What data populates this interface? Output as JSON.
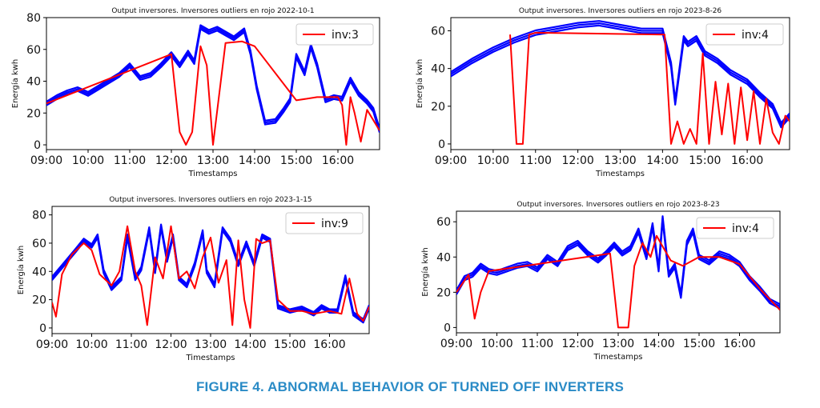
{
  "caption": "FIGURE 4. ABNORMAL BEHAVIOR OF TURNED OFF INVERTERS",
  "chart_data": [
    {
      "type": "line",
      "title": "Output inversores. Inversores outliers en rojo 2022-10-1",
      "xlabel": "Timestamps",
      "ylabel": "Energía kwh",
      "x_ticks": [
        "09:00",
        "10:00",
        "11:00",
        "12:00",
        "13:00",
        "14:00",
        "15:00",
        "16:00"
      ],
      "y_ticks": [
        0,
        20,
        40,
        60,
        80
      ],
      "xlim": [
        9.0,
        17.0
      ],
      "ylim": [
        -3,
        80
      ],
      "legend": {
        "label": "inv:3",
        "position": "top-right"
      },
      "colors": {
        "normal": "#0000ff",
        "outlier": "#ff0000"
      },
      "normal_series": {
        "x": [
          9.0,
          9.25,
          9.5,
          9.75,
          10.0,
          10.25,
          10.5,
          10.75,
          11.0,
          11.25,
          11.5,
          11.75,
          12.0,
          12.2,
          12.4,
          12.55,
          12.7,
          12.9,
          13.1,
          13.3,
          13.5,
          13.75,
          13.9,
          14.05,
          14.25,
          14.5,
          14.7,
          14.85,
          15.0,
          15.2,
          15.35,
          15.5,
          15.7,
          15.9,
          16.1,
          16.3,
          16.5,
          16.7,
          16.85,
          17.0
        ],
        "y": [
          26,
          30,
          33,
          35,
          32,
          36,
          40,
          44,
          50,
          42,
          44,
          50,
          57,
          50,
          58,
          52,
          74,
          71,
          73,
          70,
          67,
          72,
          58,
          36,
          14,
          15,
          22,
          28,
          56,
          45,
          62,
          50,
          28,
          30,
          29,
          41,
          32,
          27,
          22,
          9
        ]
      },
      "outlier_series": {
        "x": [
          9.0,
          12.0,
          12.2,
          12.35,
          12.5,
          12.7,
          12.85,
          13.0,
          13.3,
          13.7,
          14.0,
          15.0,
          15.5,
          16.0,
          16.1,
          16.2,
          16.3,
          16.4,
          16.55,
          16.7,
          17.0
        ],
        "y": [
          26,
          57,
          8,
          0,
          8,
          62,
          50,
          0,
          64,
          65,
          62,
          28,
          30,
          30,
          25,
          0,
          30,
          20,
          2,
          22,
          9
        ]
      }
    },
    {
      "type": "line",
      "title": "Output inversores. Inversores outliers en rojo 2023-8-26",
      "xlabel": "Timestamps",
      "ylabel": "Energía kwh",
      "x_ticks": [
        "09:00",
        "10:00",
        "11:00",
        "12:00",
        "13:00",
        "14:00",
        "15:00",
        "16:00"
      ],
      "y_ticks": [
        0,
        20,
        40,
        60
      ],
      "xlim": [
        9.0,
        17.0
      ],
      "ylim": [
        -3,
        67
      ],
      "legend": {
        "label": "inv:4",
        "position": "top-right"
      },
      "colors": {
        "normal": "#0000ff",
        "outlier": "#ff0000"
      },
      "normal_series": {
        "x": [
          9.0,
          9.5,
          10.0,
          10.5,
          11.0,
          11.5,
          12.0,
          12.5,
          13.0,
          13.5,
          14.0,
          14.2,
          14.3,
          14.5,
          14.6,
          14.8,
          15.0,
          15.3,
          15.6,
          16.0,
          16.3,
          16.6,
          16.8,
          17.0
        ],
        "y": [
          37,
          44,
          50,
          55,
          59,
          61,
          63,
          64,
          62,
          60,
          60,
          42,
          22,
          56,
          53,
          56,
          48,
          44,
          38,
          33,
          26,
          20,
          10,
          15
        ]
      },
      "outlier_series": {
        "x": [
          10.4,
          10.55,
          10.7,
          10.85,
          11.0,
          14.05,
          14.2,
          14.35,
          14.5,
          14.65,
          14.8,
          14.95,
          15.1,
          15.25,
          15.4,
          15.55,
          15.7,
          15.85,
          16.0,
          16.15,
          16.3,
          16.45,
          16.6,
          16.75,
          16.9,
          17.0
        ],
        "y": [
          58,
          0,
          0,
          58,
          59,
          58,
          0,
          12,
          0,
          8,
          0,
          48,
          0,
          33,
          5,
          32,
          0,
          30,
          2,
          28,
          0,
          24,
          6,
          0,
          15,
          12
        ]
      }
    },
    {
      "type": "line",
      "title": "Output inversores. Inversores outliers en rojo 2023-1-15",
      "xlabel": "Timestamps",
      "ylabel": "Energía kwh",
      "x_ticks": [
        "09:00",
        "10:00",
        "11:00",
        "12:00",
        "13:00",
        "14:00",
        "15:00",
        "16:00"
      ],
      "y_ticks": [
        0,
        20,
        40,
        60,
        80
      ],
      "xlim": [
        9.0,
        17.0
      ],
      "ylim": [
        -4,
        86
      ],
      "legend": {
        "label": "inv:9",
        "position": "top-right"
      },
      "colors": {
        "normal": "#0000ff",
        "outlier": "#ff0000"
      },
      "normal_series": {
        "x": [
          9.0,
          9.3,
          9.6,
          9.8,
          10.0,
          10.15,
          10.3,
          10.5,
          10.75,
          10.9,
          11.1,
          11.25,
          11.45,
          11.6,
          11.75,
          11.9,
          12.05,
          12.2,
          12.4,
          12.6,
          12.8,
          12.9,
          13.1,
          13.3,
          13.5,
          13.7,
          13.9,
          14.1,
          14.3,
          14.5,
          14.7,
          15.0,
          15.3,
          15.6,
          15.8,
          16.0,
          16.2,
          16.4,
          16.6,
          16.85,
          17.0
        ],
        "y": [
          35,
          45,
          55,
          62,
          58,
          65,
          40,
          28,
          35,
          65,
          35,
          42,
          70,
          40,
          72,
          48,
          65,
          35,
          30,
          45,
          68,
          40,
          30,
          70,
          62,
          45,
          60,
          45,
          65,
          62,
          15,
          12,
          14,
          10,
          15,
          12,
          12,
          36,
          10,
          5,
          15
        ]
      },
      "outlier_series": {
        "x": [
          9.0,
          9.1,
          9.25,
          9.5,
          9.8,
          10.0,
          10.2,
          10.5,
          10.7,
          10.9,
          11.1,
          11.25,
          11.4,
          11.6,
          11.8,
          12.0,
          12.2,
          12.4,
          12.6,
          12.8,
          13.0,
          13.2,
          13.4,
          13.55,
          13.7,
          13.85,
          14.0,
          14.15,
          14.3,
          14.5,
          14.7,
          15.0,
          15.3,
          15.6,
          16.0,
          16.3,
          16.5,
          16.7,
          16.85,
          17.0
        ],
        "y": [
          18,
          8,
          38,
          52,
          60,
          55,
          38,
          30,
          40,
          72,
          40,
          30,
          2,
          50,
          35,
          72,
          35,
          40,
          28,
          50,
          64,
          32,
          48,
          2,
          62,
          20,
          0,
          63,
          60,
          62,
          20,
          12,
          12,
          10,
          12,
          10,
          35,
          10,
          5,
          15
        ]
      }
    },
    {
      "type": "line",
      "title": "Output inversores. Inversores outliers en rojo 2023-8-23",
      "xlabel": "Timestamps",
      "ylabel": "Energía kwh",
      "x_ticks": [
        "09:00",
        "10:00",
        "11:00",
        "12:00",
        "13:00",
        "14:00",
        "15:00",
        "16:00"
      ],
      "y_ticks": [
        0,
        20,
        40,
        60
      ],
      "xlim": [
        9.0,
        17.0
      ],
      "ylim": [
        -3,
        66
      ],
      "legend": {
        "label": "inv:4",
        "position": "top-right"
      },
      "colors": {
        "normal": "#0000ff",
        "outlier": "#ff0000"
      },
      "normal_series": {
        "x": [
          9.0,
          9.2,
          9.4,
          9.6,
          9.8,
          10.0,
          10.25,
          10.5,
          10.75,
          11.0,
          11.25,
          11.5,
          11.75,
          12.0,
          12.25,
          12.5,
          12.7,
          12.9,
          13.1,
          13.3,
          13.5,
          13.7,
          13.85,
          14.0,
          14.1,
          14.25,
          14.4,
          14.55,
          14.7,
          14.85,
          15.0,
          15.25,
          15.5,
          15.75,
          16.0,
          16.25,
          16.5,
          16.75,
          17.0
        ],
        "y": [
          20,
          28,
          30,
          35,
          32,
          31,
          33,
          35,
          36,
          33,
          40,
          36,
          45,
          48,
          42,
          38,
          42,
          47,
          42,
          45,
          55,
          40,
          58,
          33,
          62,
          30,
          35,
          18,
          48,
          55,
          40,
          37,
          42,
          40,
          36,
          28,
          22,
          15,
          12
        ]
      },
      "outlier_series": {
        "x": [
          9.0,
          9.3,
          9.45,
          9.6,
          9.8,
          12.8,
          13.0,
          13.1,
          13.25,
          13.4,
          13.6,
          13.8,
          13.95,
          14.1,
          14.3,
          14.6,
          15.0,
          15.5,
          16.0,
          16.5,
          17.0
        ],
        "y": [
          20,
          30,
          5,
          20,
          32,
          42,
          0,
          0,
          0,
          35,
          48,
          40,
          52,
          46,
          38,
          35,
          40,
          40,
          36,
          22,
          10
        ]
      }
    }
  ]
}
